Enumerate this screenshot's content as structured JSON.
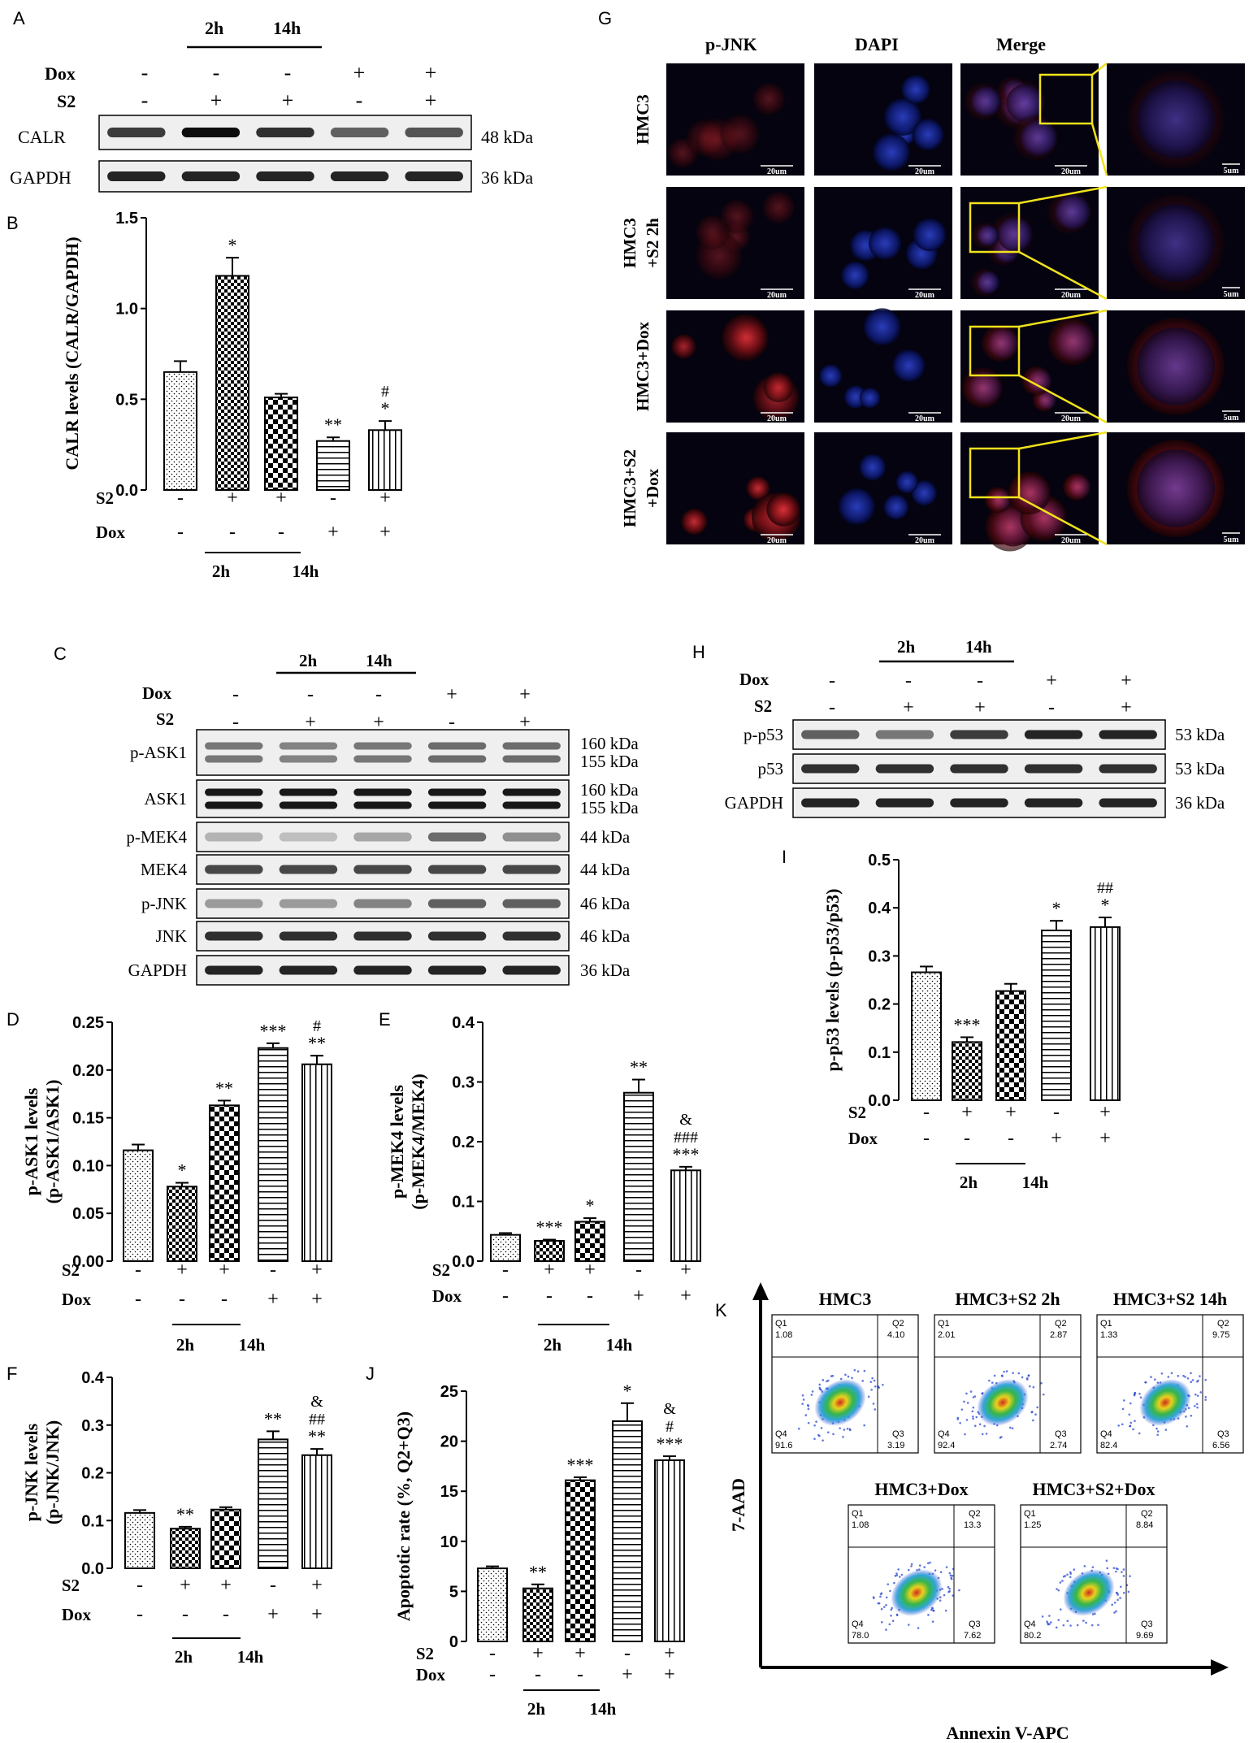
{
  "panel_letters": [
    "A",
    "B",
    "C",
    "D",
    "E",
    "F",
    "G",
    "H",
    "I",
    "J",
    "K"
  ],
  "time_labels": [
    "2h",
    "14h"
  ],
  "row_labels": {
    "dox": "Dox",
    "s2": "S2"
  },
  "treatments": {
    "s2": [
      "-",
      "+",
      "+",
      "-",
      "+"
    ],
    "dox": [
      "-",
      "-",
      "-",
      "+",
      "+"
    ]
  },
  "panel_A": {
    "bands": [
      {
        "name": "CALR",
        "kda": "48 kDa"
      },
      {
        "name": "GAPDH",
        "kda": "36 kDa"
      }
    ]
  },
  "panel_C": {
    "bands": [
      {
        "name": "p-ASK1",
        "kda": [
          "160 kDa",
          "155 kDa"
        ]
      },
      {
        "name": "ASK1",
        "kda": [
          "160 kDa",
          "155 kDa"
        ]
      },
      {
        "name": "p-MEK4",
        "kda": [
          "44 kDa"
        ]
      },
      {
        "name": "MEK4",
        "kda": [
          "44 kDa"
        ]
      },
      {
        "name": "p-JNK",
        "kda": [
          "46 kDa"
        ]
      },
      {
        "name": "JNK",
        "kda": [
          "46 kDa"
        ]
      },
      {
        "name": "GAPDH",
        "kda": [
          "36 kDa"
        ]
      }
    ]
  },
  "panel_H": {
    "bands": [
      {
        "name": "p-p53",
        "kda": "53 kDa"
      },
      {
        "name": "p53",
        "kda": "53 kDa"
      },
      {
        "name": "GAPDH",
        "kda": "36 kDa"
      }
    ]
  },
  "panel_G": {
    "columns": [
      "p-JNK",
      "DAPI",
      "Merge"
    ],
    "rows": [
      [
        "HMC3"
      ],
      [
        "HMC3",
        "+S2 2h"
      ],
      [
        "HMC3+Dox"
      ],
      [
        "HMC3+S2",
        "+Dox"
      ]
    ],
    "scale_large": "20um",
    "scale_small": "5um"
  },
  "panel_K": {
    "y_label": "7-AAD",
    "x_label": "Annexin V-APC",
    "plots": [
      {
        "title": "HMC3",
        "Q1": "1.08",
        "Q2": "4.10",
        "Q3": "3.19",
        "Q4": "91.6"
      },
      {
        "title": "HMC3+S2 2h",
        "Q1": "2.01",
        "Q2": "2.87",
        "Q3": "2.74",
        "Q4": "92.4"
      },
      {
        "title": "HMC3+S2 14h",
        "Q1": "1.33",
        "Q2": "9.75",
        "Q3": "6.56",
        "Q4": "82.4"
      },
      {
        "title": "HMC3+Dox",
        "Q1": "1.08",
        "Q2": "13.3",
        "Q3": "7.62",
        "Q4": "78.0"
      },
      {
        "title": "HMC3+S2+Dox",
        "Q1": "1.25",
        "Q2": "8.84",
        "Q3": "9.69",
        "Q4": "80.2"
      }
    ]
  },
  "chart_data": [
    {
      "panel": "B",
      "type": "bar",
      "ylabel": "CALR levels (CALR/GAPDH)",
      "ylim": [
        0,
        1.5
      ],
      "ticks": [
        "0.0",
        "0.5",
        "1.0",
        "1.5"
      ],
      "values": [
        0.65,
        1.18,
        0.51,
        0.27,
        0.33
      ],
      "errors": [
        0.06,
        0.1,
        0.02,
        0.02,
        0.05
      ],
      "annotations": [
        [],
        [
          "*"
        ],
        [],
        [
          "**"
        ],
        [
          "*",
          "#"
        ]
      ]
    },
    {
      "panel": "D",
      "type": "bar",
      "ylabel": [
        "p-ASK1 levels",
        "(p-ASK1/ASK1)"
      ],
      "ylim": [
        0,
        0.25
      ],
      "ticks": [
        "0.00",
        "0.05",
        "0.10",
        "0.15",
        "0.20",
        "0.25"
      ],
      "values": [
        0.116,
        0.078,
        0.163,
        0.223,
        0.206
      ],
      "errors": [
        0.006,
        0.004,
        0.005,
        0.005,
        0.009
      ],
      "annotations": [
        [],
        [
          "*"
        ],
        [
          "**"
        ],
        [
          "***"
        ],
        [
          "**",
          "#"
        ]
      ]
    },
    {
      "panel": "E",
      "type": "bar",
      "ylabel": [
        "p-MEK4 levels",
        "(p-MEK4/MEK4)"
      ],
      "ylim": [
        0,
        0.4
      ],
      "ticks": [
        "0.0",
        "0.1",
        "0.2",
        "0.3",
        "0.4"
      ],
      "values": [
        0.044,
        0.034,
        0.066,
        0.282,
        0.152
      ],
      "errors": [
        0.003,
        0.002,
        0.006,
        0.022,
        0.006
      ],
      "annotations": [
        [],
        [
          "***"
        ],
        [
          "*"
        ],
        [
          "**"
        ],
        [
          "***",
          "###",
          "&"
        ]
      ]
    },
    {
      "panel": "F",
      "type": "bar",
      "ylabel": [
        "p-JNK levels",
        "(p-JNK/JNK)"
      ],
      "ylim": [
        0,
        0.4
      ],
      "ticks": [
        "0.0",
        "0.1",
        "0.2",
        "0.3",
        "0.4"
      ],
      "values": [
        0.116,
        0.083,
        0.123,
        0.27,
        0.237
      ],
      "errors": [
        0.006,
        0.004,
        0.005,
        0.017,
        0.013
      ],
      "annotations": [
        [],
        [
          "**"
        ],
        [],
        [
          "**"
        ],
        [
          "**",
          "##",
          "&"
        ]
      ]
    },
    {
      "panel": "I",
      "type": "bar",
      "ylabel": "p-p53 levels (p-p53/p53)",
      "ylim": [
        0,
        0.5
      ],
      "ticks": [
        "0.0",
        "0.1",
        "0.2",
        "0.3",
        "0.4",
        "0.5"
      ],
      "values": [
        0.266,
        0.121,
        0.227,
        0.353,
        0.36
      ],
      "errors": [
        0.012,
        0.01,
        0.015,
        0.02,
        0.02
      ],
      "annotations": [
        [],
        [
          "***"
        ],
        [],
        [
          "*"
        ],
        [
          "*",
          "##"
        ]
      ]
    },
    {
      "panel": "J",
      "type": "bar",
      "ylabel": "Apoptotic rate (%, Q2+Q3)",
      "ylim": [
        0,
        25
      ],
      "ticks": [
        "0",
        "5",
        "10",
        "15",
        "20",
        "25"
      ],
      "values": [
        7.3,
        5.3,
        16.1,
        22.0,
        18.1
      ],
      "errors": [
        0.2,
        0.4,
        0.3,
        1.8,
        0.4
      ],
      "annotations": [
        [],
        [
          "**"
        ],
        [
          "***"
        ],
        [
          "*"
        ],
        [
          "***",
          "#",
          "&"
        ]
      ]
    }
  ]
}
